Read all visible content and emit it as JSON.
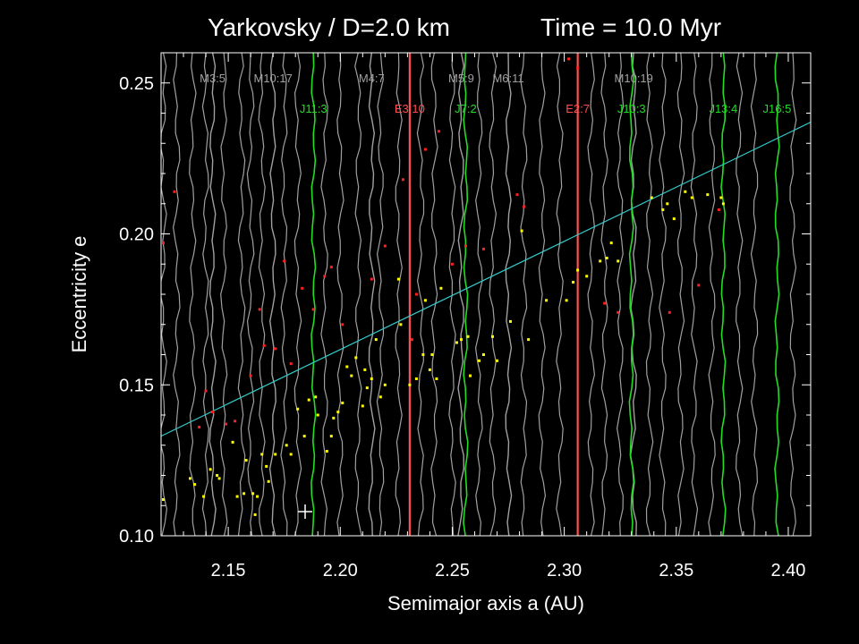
{
  "title_left": "Yarkovsky / D=2.0 km",
  "title_right": "Time =   10.0 Myr",
  "chart_data": {
    "type": "scatter",
    "xlabel": "Semimajor axis a (AU)",
    "ylabel": "Eccentricity e",
    "xlim": [
      2.12,
      2.41
    ],
    "ylim": [
      0.1,
      0.26
    ],
    "x_ticks": [
      "2.15",
      "2.20",
      "2.25",
      "2.30",
      "2.35",
      "2.40"
    ],
    "x_tick_values": [
      2.15,
      2.2,
      2.25,
      2.3,
      2.35,
      2.4
    ],
    "y_ticks": [
      "0.10",
      "0.15",
      "0.20",
      "0.25"
    ],
    "y_tick_values": [
      0.1,
      0.15,
      0.2,
      0.25
    ],
    "colors": {
      "background": "#000000",
      "axes": "#ffffff",
      "weak_resonance": "#a0a0a0",
      "jupiter_resonance": "#22dd22",
      "earth_resonance": "#ff5050",
      "fit_line": "#33cccc",
      "points_yellow": "#ffff00",
      "points_red": "#ff2020"
    },
    "resonances": [
      {
        "label": "M3:5",
        "a": 2.143,
        "kind": "mars"
      },
      {
        "label": "M10:17",
        "a": 2.17,
        "kind": "mars"
      },
      {
        "label": "M4:7",
        "a": 2.214,
        "kind": "mars"
      },
      {
        "label": "M5:9",
        "a": 2.254,
        "kind": "mars"
      },
      {
        "label": "M6:11",
        "a": 2.275,
        "kind": "mars"
      },
      {
        "label": "M10:19",
        "a": 2.331,
        "kind": "mars"
      },
      {
        "label": "J11:3",
        "a": 2.188,
        "kind": "jupiter"
      },
      {
        "label": "J7:2",
        "a": 2.256,
        "kind": "jupiter"
      },
      {
        "label": "J10:3",
        "a": 2.33,
        "kind": "jupiter"
      },
      {
        "label": "J13:4",
        "a": 2.371,
        "kind": "jupiter"
      },
      {
        "label": "J16:5",
        "a": 2.395,
        "kind": "jupiter"
      },
      {
        "label": "E3:10",
        "a": 2.231,
        "kind": "earth"
      },
      {
        "label": "E2:7",
        "a": 2.306,
        "kind": "earth"
      }
    ],
    "weak_lines_a": [
      2.121,
      2.127,
      2.134,
      2.14,
      2.148,
      2.156,
      2.16,
      2.165,
      2.175,
      2.181,
      2.193,
      2.2,
      2.208,
      2.218,
      2.226,
      2.236,
      2.242,
      2.25,
      2.262,
      2.268,
      2.282,
      2.29,
      2.298,
      2.312,
      2.318,
      2.325,
      2.338,
      2.344,
      2.352,
      2.358,
      2.366,
      2.378,
      2.385,
      2.402
    ],
    "fit_line": {
      "x": [
        2.12,
        2.41
      ],
      "y": [
        0.133,
        0.237
      ]
    },
    "series": [
      {
        "name": "",
        "color": "yellow",
        "points": [
          [
            2.121,
            0.112
          ],
          [
            2.133,
            0.119
          ],
          [
            2.135,
            0.117
          ],
          [
            2.139,
            0.113
          ],
          [
            2.142,
            0.122
          ],
          [
            2.145,
            0.12
          ],
          [
            2.146,
            0.119
          ],
          [
            2.152,
            0.131
          ],
          [
            2.154,
            0.113
          ],
          [
            2.157,
            0.114
          ],
          [
            2.158,
            0.125
          ],
          [
            2.161,
            0.114
          ],
          [
            2.162,
            0.107
          ],
          [
            2.163,
            0.113
          ],
          [
            2.165,
            0.127
          ],
          [
            2.167,
            0.123
          ],
          [
            2.168,
            0.118
          ],
          [
            2.171,
            0.127
          ],
          [
            2.176,
            0.13
          ],
          [
            2.178,
            0.127
          ],
          [
            2.181,
            0.142
          ],
          [
            2.184,
            0.133
          ],
          [
            2.186,
            0.145
          ],
          [
            2.189,
            0.146
          ],
          [
            2.19,
            0.14
          ],
          [
            2.194,
            0.128
          ],
          [
            2.196,
            0.133
          ],
          [
            2.197,
            0.139
          ],
          [
            2.199,
            0.141
          ],
          [
            2.201,
            0.144
          ],
          [
            2.203,
            0.156
          ],
          [
            2.205,
            0.153
          ],
          [
            2.207,
            0.159
          ],
          [
            2.21,
            0.143
          ],
          [
            2.211,
            0.155
          ],
          [
            2.212,
            0.149
          ],
          [
            2.214,
            0.152
          ],
          [
            2.216,
            0.165
          ],
          [
            2.218,
            0.146
          ],
          [
            2.22,
            0.15
          ],
          [
            2.226,
            0.185
          ],
          [
            2.227,
            0.17
          ],
          [
            2.231,
            0.15
          ],
          [
            2.234,
            0.152
          ],
          [
            2.237,
            0.16
          ],
          [
            2.238,
            0.178
          ],
          [
            2.24,
            0.155
          ],
          [
            2.241,
            0.16
          ],
          [
            2.243,
            0.152
          ],
          [
            2.245,
            0.182
          ],
          [
            2.252,
            0.164
          ],
          [
            2.254,
            0.165
          ],
          [
            2.257,
            0.166
          ],
          [
            2.258,
            0.153
          ],
          [
            2.262,
            0.158
          ],
          [
            2.264,
            0.16
          ],
          [
            2.268,
            0.166
          ],
          [
            2.27,
            0.158
          ],
          [
            2.276,
            0.171
          ],
          [
            2.281,
            0.201
          ],
          [
            2.284,
            0.165
          ],
          [
            2.292,
            0.178
          ],
          [
            2.301,
            0.178
          ],
          [
            2.304,
            0.184
          ],
          [
            2.306,
            0.188
          ],
          [
            2.31,
            0.186
          ],
          [
            2.316,
            0.191
          ],
          [
            2.319,
            0.192
          ],
          [
            2.321,
            0.197
          ],
          [
            2.324,
            0.191
          ],
          [
            2.339,
            0.212
          ],
          [
            2.344,
            0.208
          ],
          [
            2.346,
            0.21
          ],
          [
            2.349,
            0.205
          ],
          [
            2.354,
            0.214
          ],
          [
            2.357,
            0.212
          ],
          [
            2.364,
            0.213
          ],
          [
            2.37,
            0.212
          ],
          [
            2.371,
            0.21
          ]
        ]
      },
      {
        "name": "",
        "color": "red",
        "points": [
          [
            2.121,
            0.197
          ],
          [
            2.126,
            0.214
          ],
          [
            2.137,
            0.136
          ],
          [
            2.14,
            0.148
          ],
          [
            2.143,
            0.141
          ],
          [
            2.149,
            0.137
          ],
          [
            2.153,
            0.138
          ],
          [
            2.16,
            0.153
          ],
          [
            2.164,
            0.175
          ],
          [
            2.166,
            0.163
          ],
          [
            2.171,
            0.162
          ],
          [
            2.175,
            0.191
          ],
          [
            2.178,
            0.157
          ],
          [
            2.183,
            0.182
          ],
          [
            2.188,
            0.175
          ],
          [
            2.193,
            0.186
          ],
          [
            2.196,
            0.189
          ],
          [
            2.201,
            0.17
          ],
          [
            2.214,
            0.185
          ],
          [
            2.22,
            0.196
          ],
          [
            2.228,
            0.218
          ],
          [
            2.232,
            0.165
          ],
          [
            2.234,
            0.18
          ],
          [
            2.238,
            0.228
          ],
          [
            2.244,
            0.234
          ],
          [
            2.25,
            0.19
          ],
          [
            2.256,
            0.196
          ],
          [
            2.264,
            0.195
          ],
          [
            2.279,
            0.213
          ],
          [
            2.282,
            0.209
          ],
          [
            2.302,
            0.258
          ],
          [
            2.306,
            0.255
          ],
          [
            2.318,
            0.177
          ],
          [
            2.324,
            0.174
          ],
          [
            2.347,
            0.174
          ],
          [
            2.36,
            0.183
          ],
          [
            2.369,
            0.208
          ]
        ]
      }
    ]
  }
}
